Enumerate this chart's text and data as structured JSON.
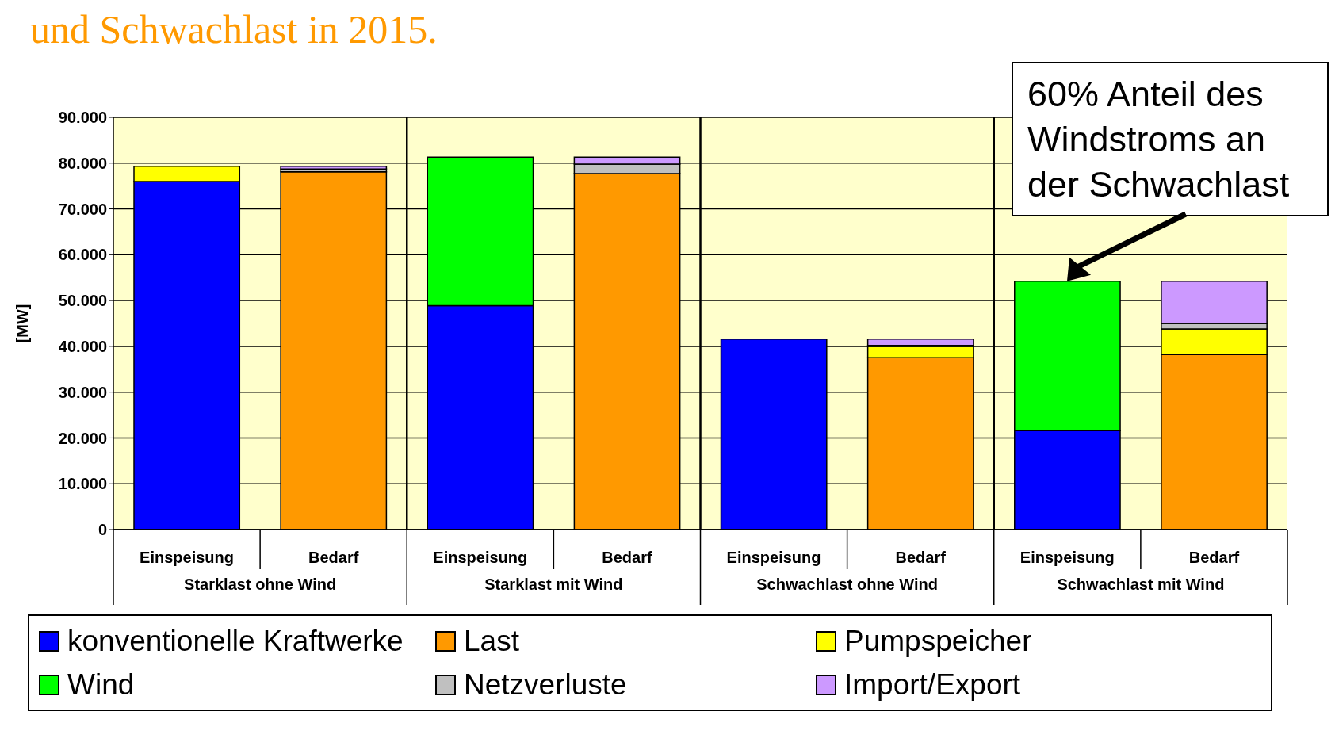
{
  "chart_data": {
    "type": "bar",
    "title": "und Schwachlast in 2015.",
    "ylabel": "[MW]",
    "stacked": true,
    "categories": [
      "Einspeisung",
      "Bedarf",
      "Einspeisung",
      "Bedarf",
      "Einspeisung",
      "Bedarf",
      "Einspeisung",
      "Bedarf"
    ],
    "annotations": [
      "Starklast ohne Wind",
      "Starklast mit Wind",
      "Schwachlast ohne Wind",
      "Schwachlast mit Wind",
      "60% Anteil des Windstroms an der Schwachlast"
    ],
    "series": [
      {
        "name": "konventionelle Kraftwerke",
        "color": "#0000ff",
        "values": [
          76000,
          null,
          48900,
          null,
          41600,
          null,
          21600,
          null
        ]
      },
      {
        "name": "Wind",
        "color": "#00ff00",
        "values": [
          null,
          null,
          32400,
          null,
          null,
          null,
          32600,
          null
        ]
      },
      {
        "name": "Last",
        "color": "#ff9900",
        "values": [
          null,
          78100,
          null,
          77700,
          null,
          37500,
          null,
          38200
        ]
      },
      {
        "name": "Pumpspeicher",
        "color": "#ffff00",
        "values": [
          3300,
          null,
          null,
          null,
          null,
          2500,
          null,
          5600
        ]
      },
      {
        "name": "Netzverluste",
        "color": "#c0c0c0",
        "values": [
          null,
          600,
          null,
          2100,
          null,
          200,
          null,
          1200
        ]
      },
      {
        "name": "Import/Export",
        "color": "#cc99ff",
        "values": [
          null,
          600,
          null,
          1500,
          null,
          1400,
          null,
          9200
        ]
      }
    ],
    "ylim": [
      0,
      90000
    ],
    "yticks": [
      {
        "value": 0,
        "label": "0"
      },
      {
        "value": 10000,
        "label": "10.000"
      },
      {
        "value": 20000,
        "label": "20.000"
      },
      {
        "value": 30000,
        "label": "30.000"
      },
      {
        "value": 40000,
        "label": "40.000"
      },
      {
        "value": 50000,
        "label": "50.000"
      },
      {
        "value": 60000,
        "label": "60.000"
      },
      {
        "value": 70000,
        "label": "70.000"
      },
      {
        "value": 80000,
        "label": "80.000"
      },
      {
        "value": 90000,
        "label": "90.000"
      }
    ],
    "grid": "y",
    "legend": "bottom"
  }
}
